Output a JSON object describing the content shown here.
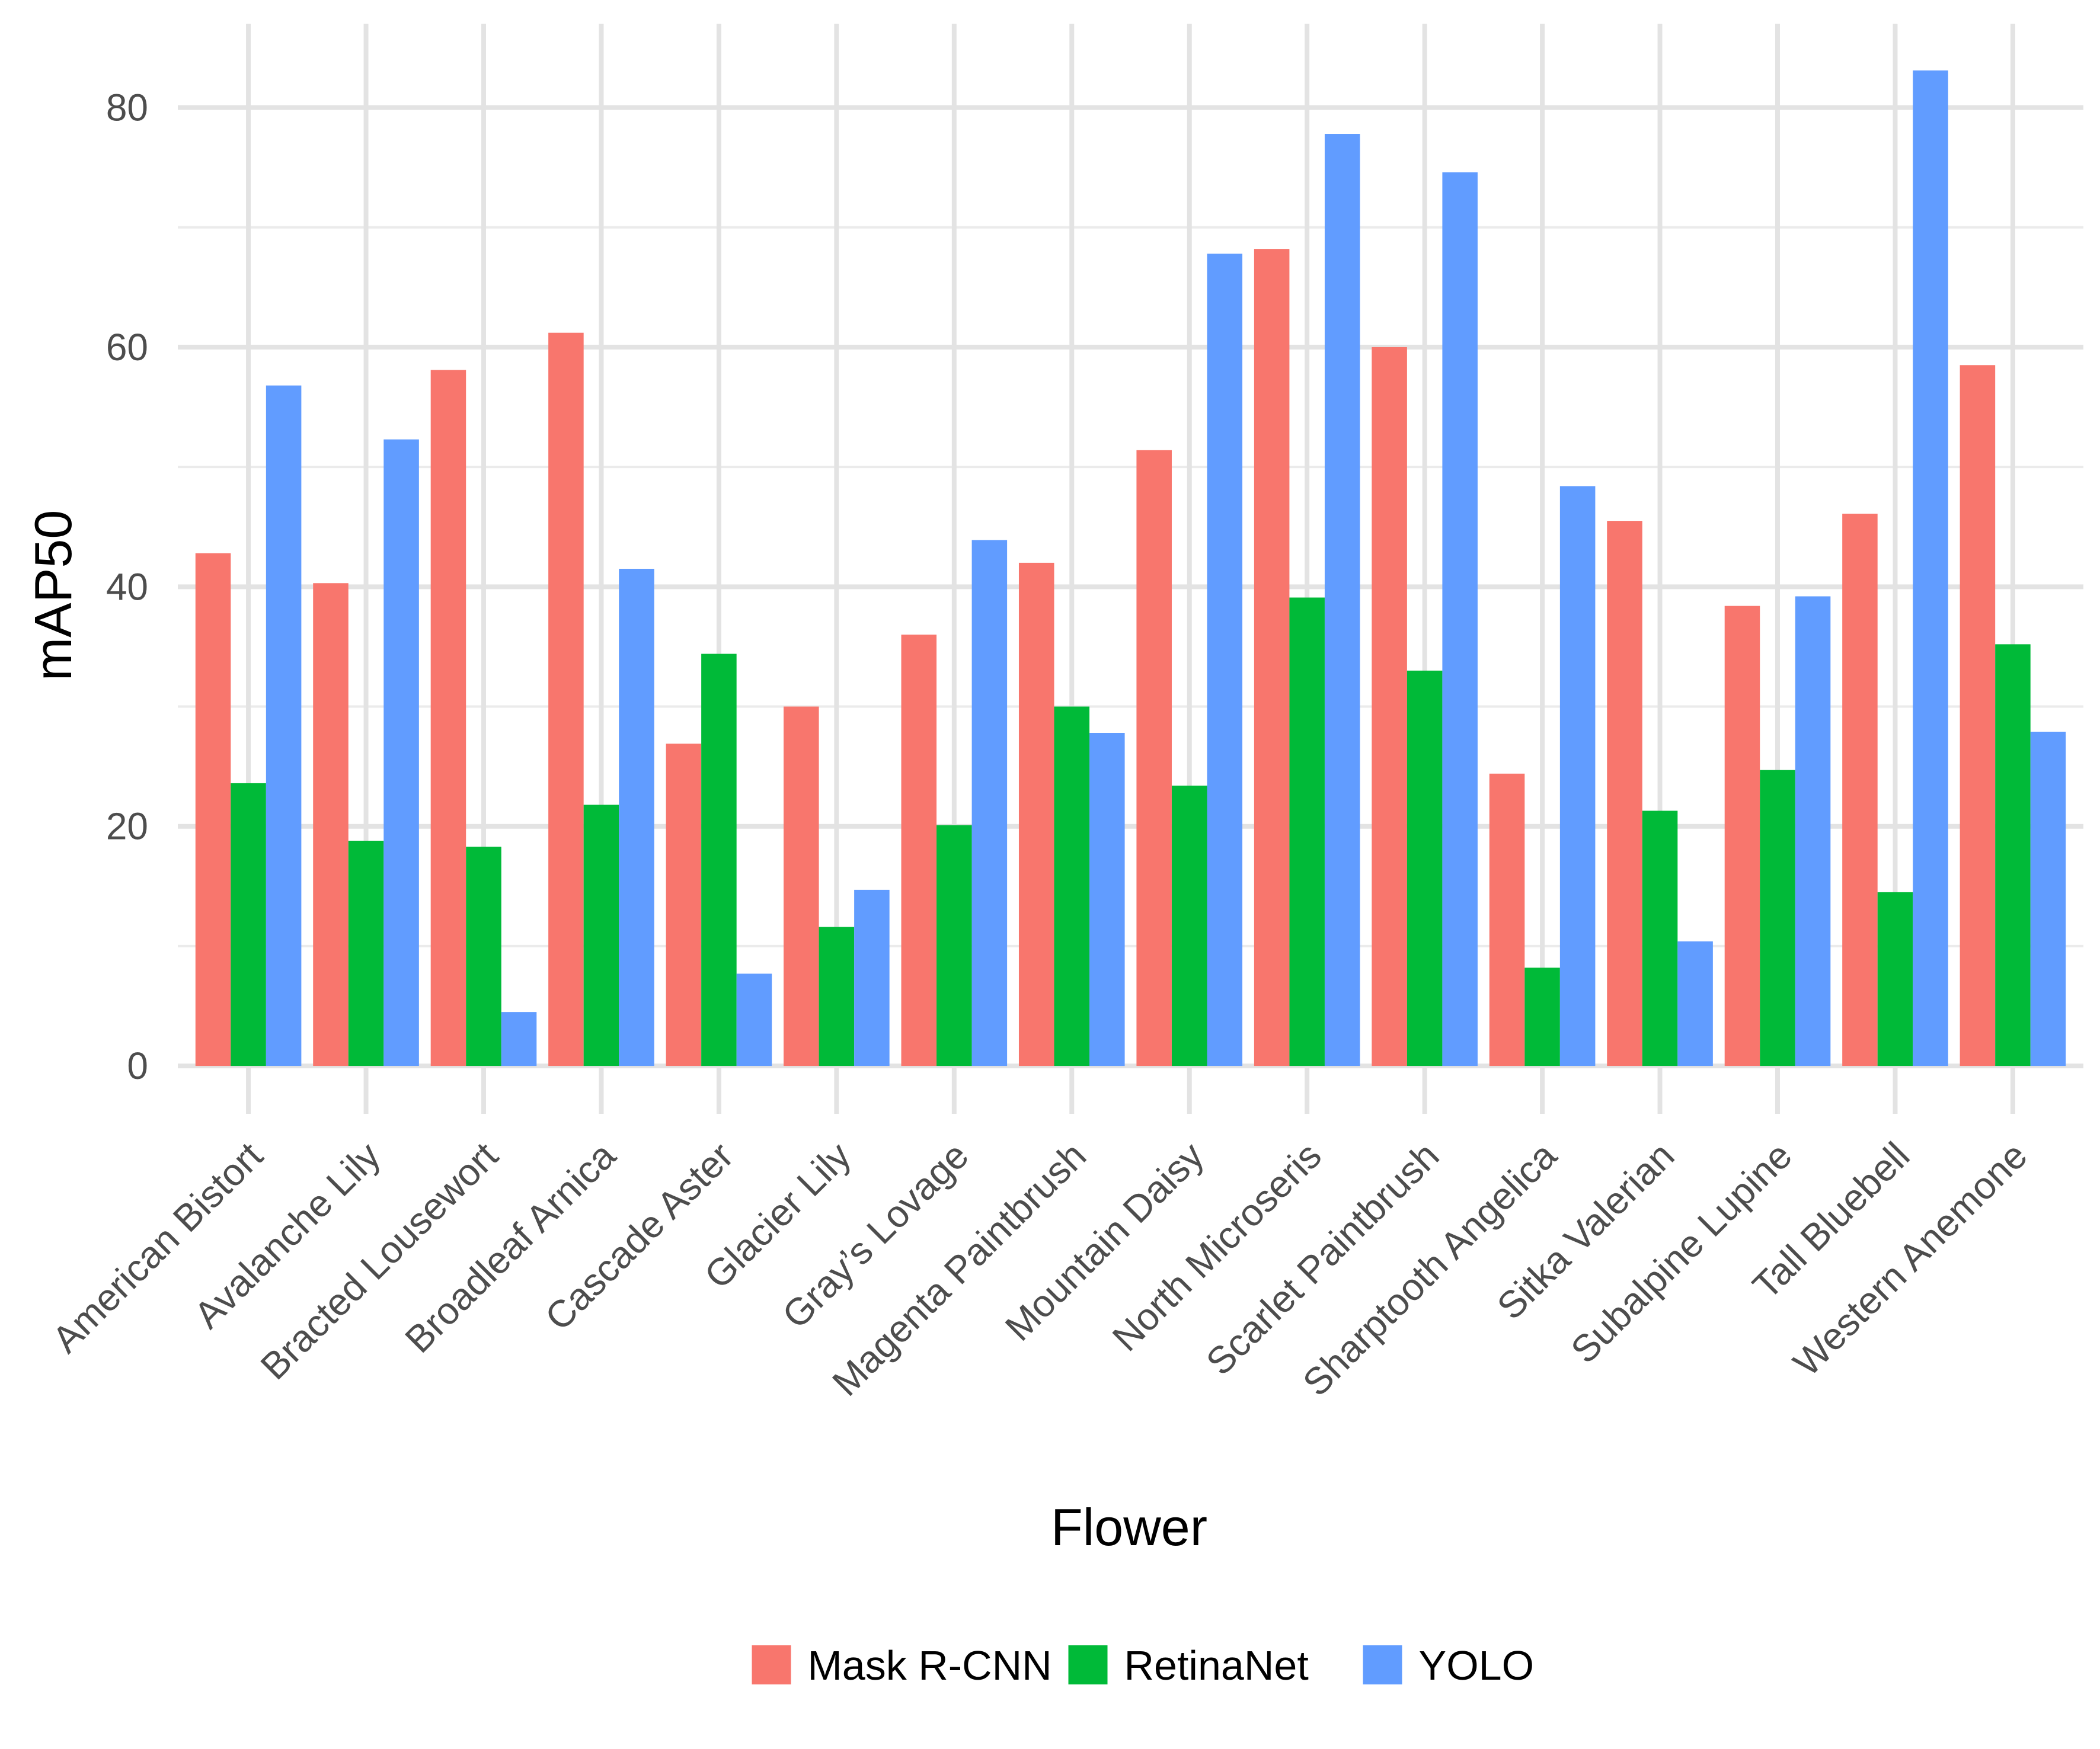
{
  "chart_data": {
    "type": "bar",
    "xlabel": "Flower",
    "ylabel": "mAP50",
    "ylim": [
      -4,
      87
    ],
    "yticks": [
      0,
      20,
      40,
      60,
      80
    ],
    "grid": true,
    "legend_position": "bottom",
    "categories": [
      "American Bistort",
      "Avalanche Lily",
      "Bracted Lousewort",
      "Broadleaf Arnica",
      "Cascade Aster",
      "Glacier Lily",
      "Gray’s Lovage",
      "Magenta Paintbrush",
      "Mountain Daisy",
      "North Microseris",
      "Scarlet Paintbrush",
      "Sharptooth Angelica",
      "Sitka Valerian",
      "Subalpine Lupine",
      "Tall Bluebell",
      "Western Anemone"
    ],
    "series": [
      {
        "name": "Mask R-CNN",
        "color": "#F8766D",
        "values": [
          42.8,
          40.3,
          58.1,
          61.2,
          26.9,
          30.0,
          36.0,
          42.0,
          51.4,
          68.2,
          60.0,
          24.4,
          45.5,
          38.4,
          46.1,
          58.5
        ]
      },
      {
        "name": "RetinaNet",
        "color": "#00BA38",
        "values": [
          23.6,
          18.8,
          18.3,
          21.8,
          34.4,
          11.6,
          20.1,
          30.0,
          23.4,
          39.1,
          33.0,
          8.2,
          21.3,
          24.7,
          14.5,
          35.2
        ]
      },
      {
        "name": "YOLO",
        "color": "#619CFF",
        "values": [
          56.8,
          52.3,
          4.5,
          41.5,
          7.7,
          14.7,
          43.9,
          27.8,
          67.8,
          77.8,
          74.6,
          48.4,
          10.4,
          39.2,
          83.1,
          27.9
        ]
      }
    ]
  }
}
